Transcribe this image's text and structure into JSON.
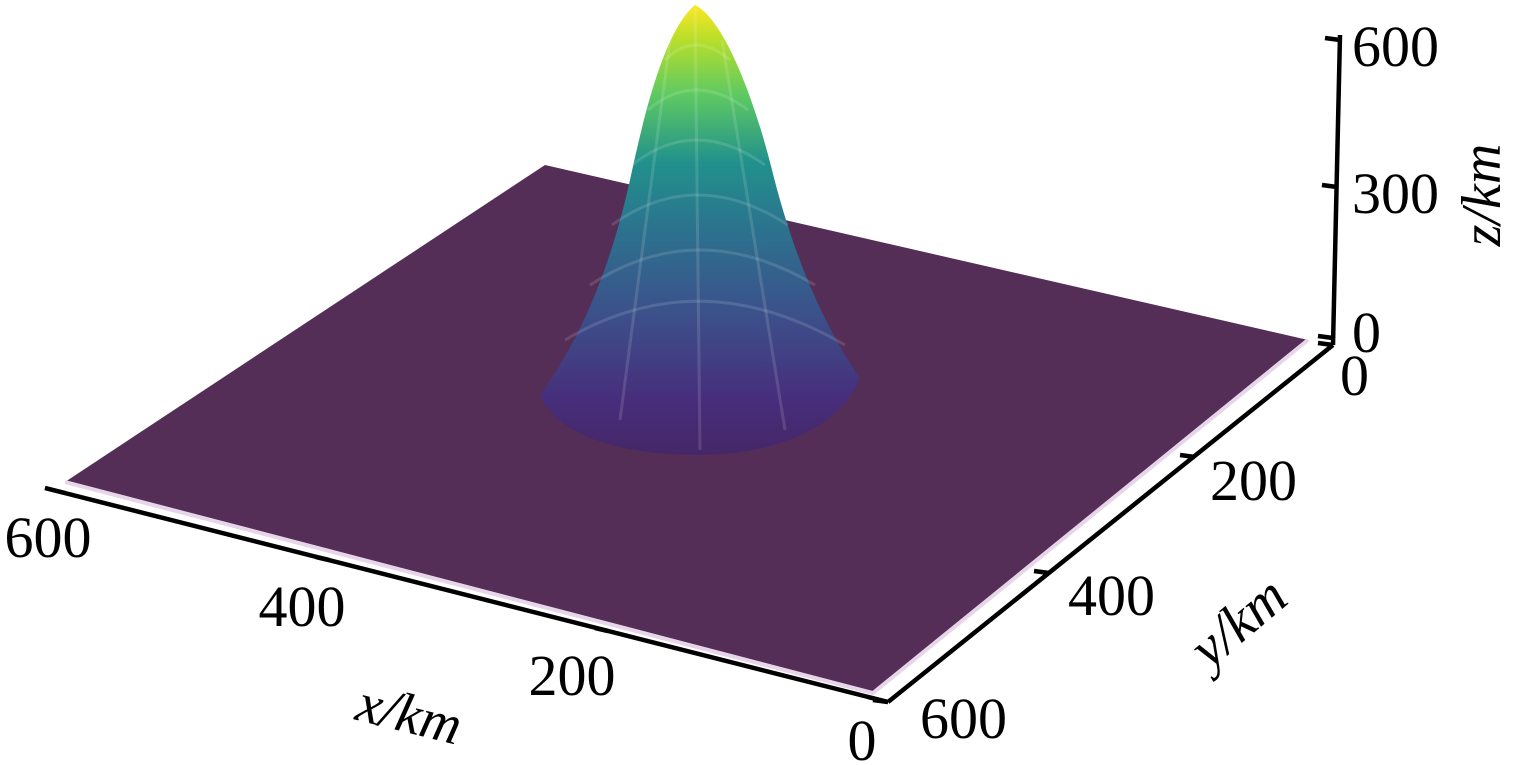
{
  "chart_data": {
    "type": "surface",
    "title": "",
    "xlabel": "x/km",
    "ylabel": "y/km",
    "zlabel": "z/km",
    "xlim": [
      0,
      600
    ],
    "ylim": [
      0,
      600
    ],
    "zlim": [
      0,
      600
    ],
    "x_ticks": [
      "0",
      "200",
      "400",
      "600"
    ],
    "y_ticks": [
      "0",
      "200",
      "400",
      "600"
    ],
    "z_ticks": [
      "0",
      "300",
      "600"
    ],
    "surface": {
      "shape": "gaussian",
      "peak_height": 600,
      "center_x": 300,
      "center_y": 300,
      "base_height": 0
    },
    "colormap": "viridis",
    "colors": {
      "base": "#542e56",
      "low": "#472d7b",
      "mid": "#2c9a8c",
      "high": "#fde725"
    }
  }
}
